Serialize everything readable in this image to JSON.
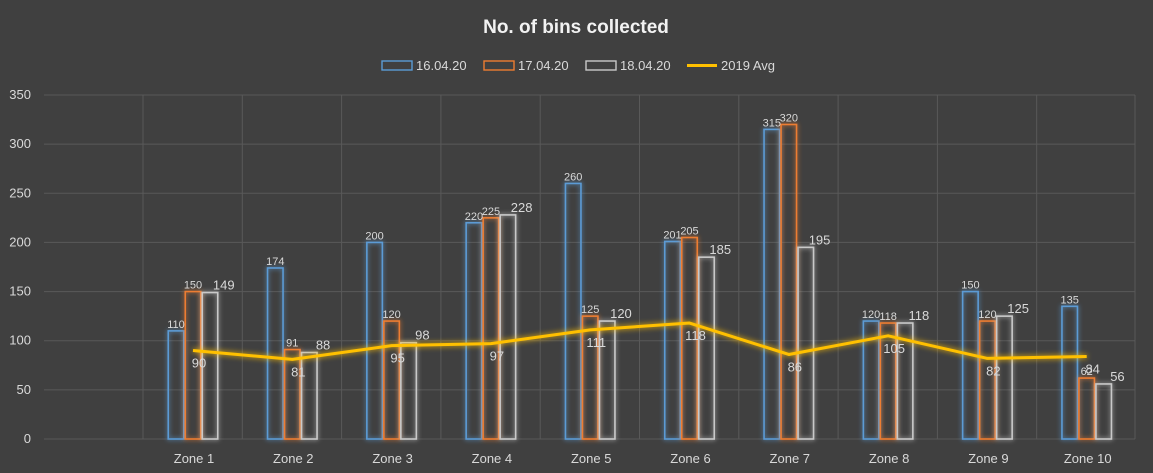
{
  "chart_data": {
    "type": "bar",
    "title": "No. of bins collected",
    "categories": [
      "Zone 1",
      "Zone 2",
      "Zone 3",
      "Zone 4",
      "Zone 5",
      "Zone 6",
      "Zone 7",
      "Zone 8",
      "Zone 9",
      "Zone 10"
    ],
    "series": [
      {
        "name": "16.04.20",
        "type": "bar",
        "color": "#5b9bd5",
        "values": [
          110,
          174,
          200,
          220,
          260,
          201,
          315,
          120,
          150,
          135
        ]
      },
      {
        "name": "17.04.20",
        "type": "bar",
        "color": "#ed7d31",
        "values": [
          150,
          91,
          120,
          225,
          125,
          205,
          320,
          118,
          120,
          62
        ]
      },
      {
        "name": "18.04.20",
        "type": "bar",
        "color": "#c9c9c9",
        "values": [
          149,
          88,
          98,
          228,
          120,
          185,
          195,
          118,
          125,
          56
        ]
      },
      {
        "name": "2019 Avg",
        "type": "line",
        "color": "#ffc000",
        "values": [
          90,
          81,
          95,
          97,
          111,
          118,
          86,
          105,
          82,
          84
        ]
      }
    ],
    "ylim": [
      0,
      350
    ],
    "yticks": [
      0,
      50,
      100,
      150,
      200,
      250,
      300,
      350
    ],
    "grid": true,
    "legend": "top-center"
  }
}
